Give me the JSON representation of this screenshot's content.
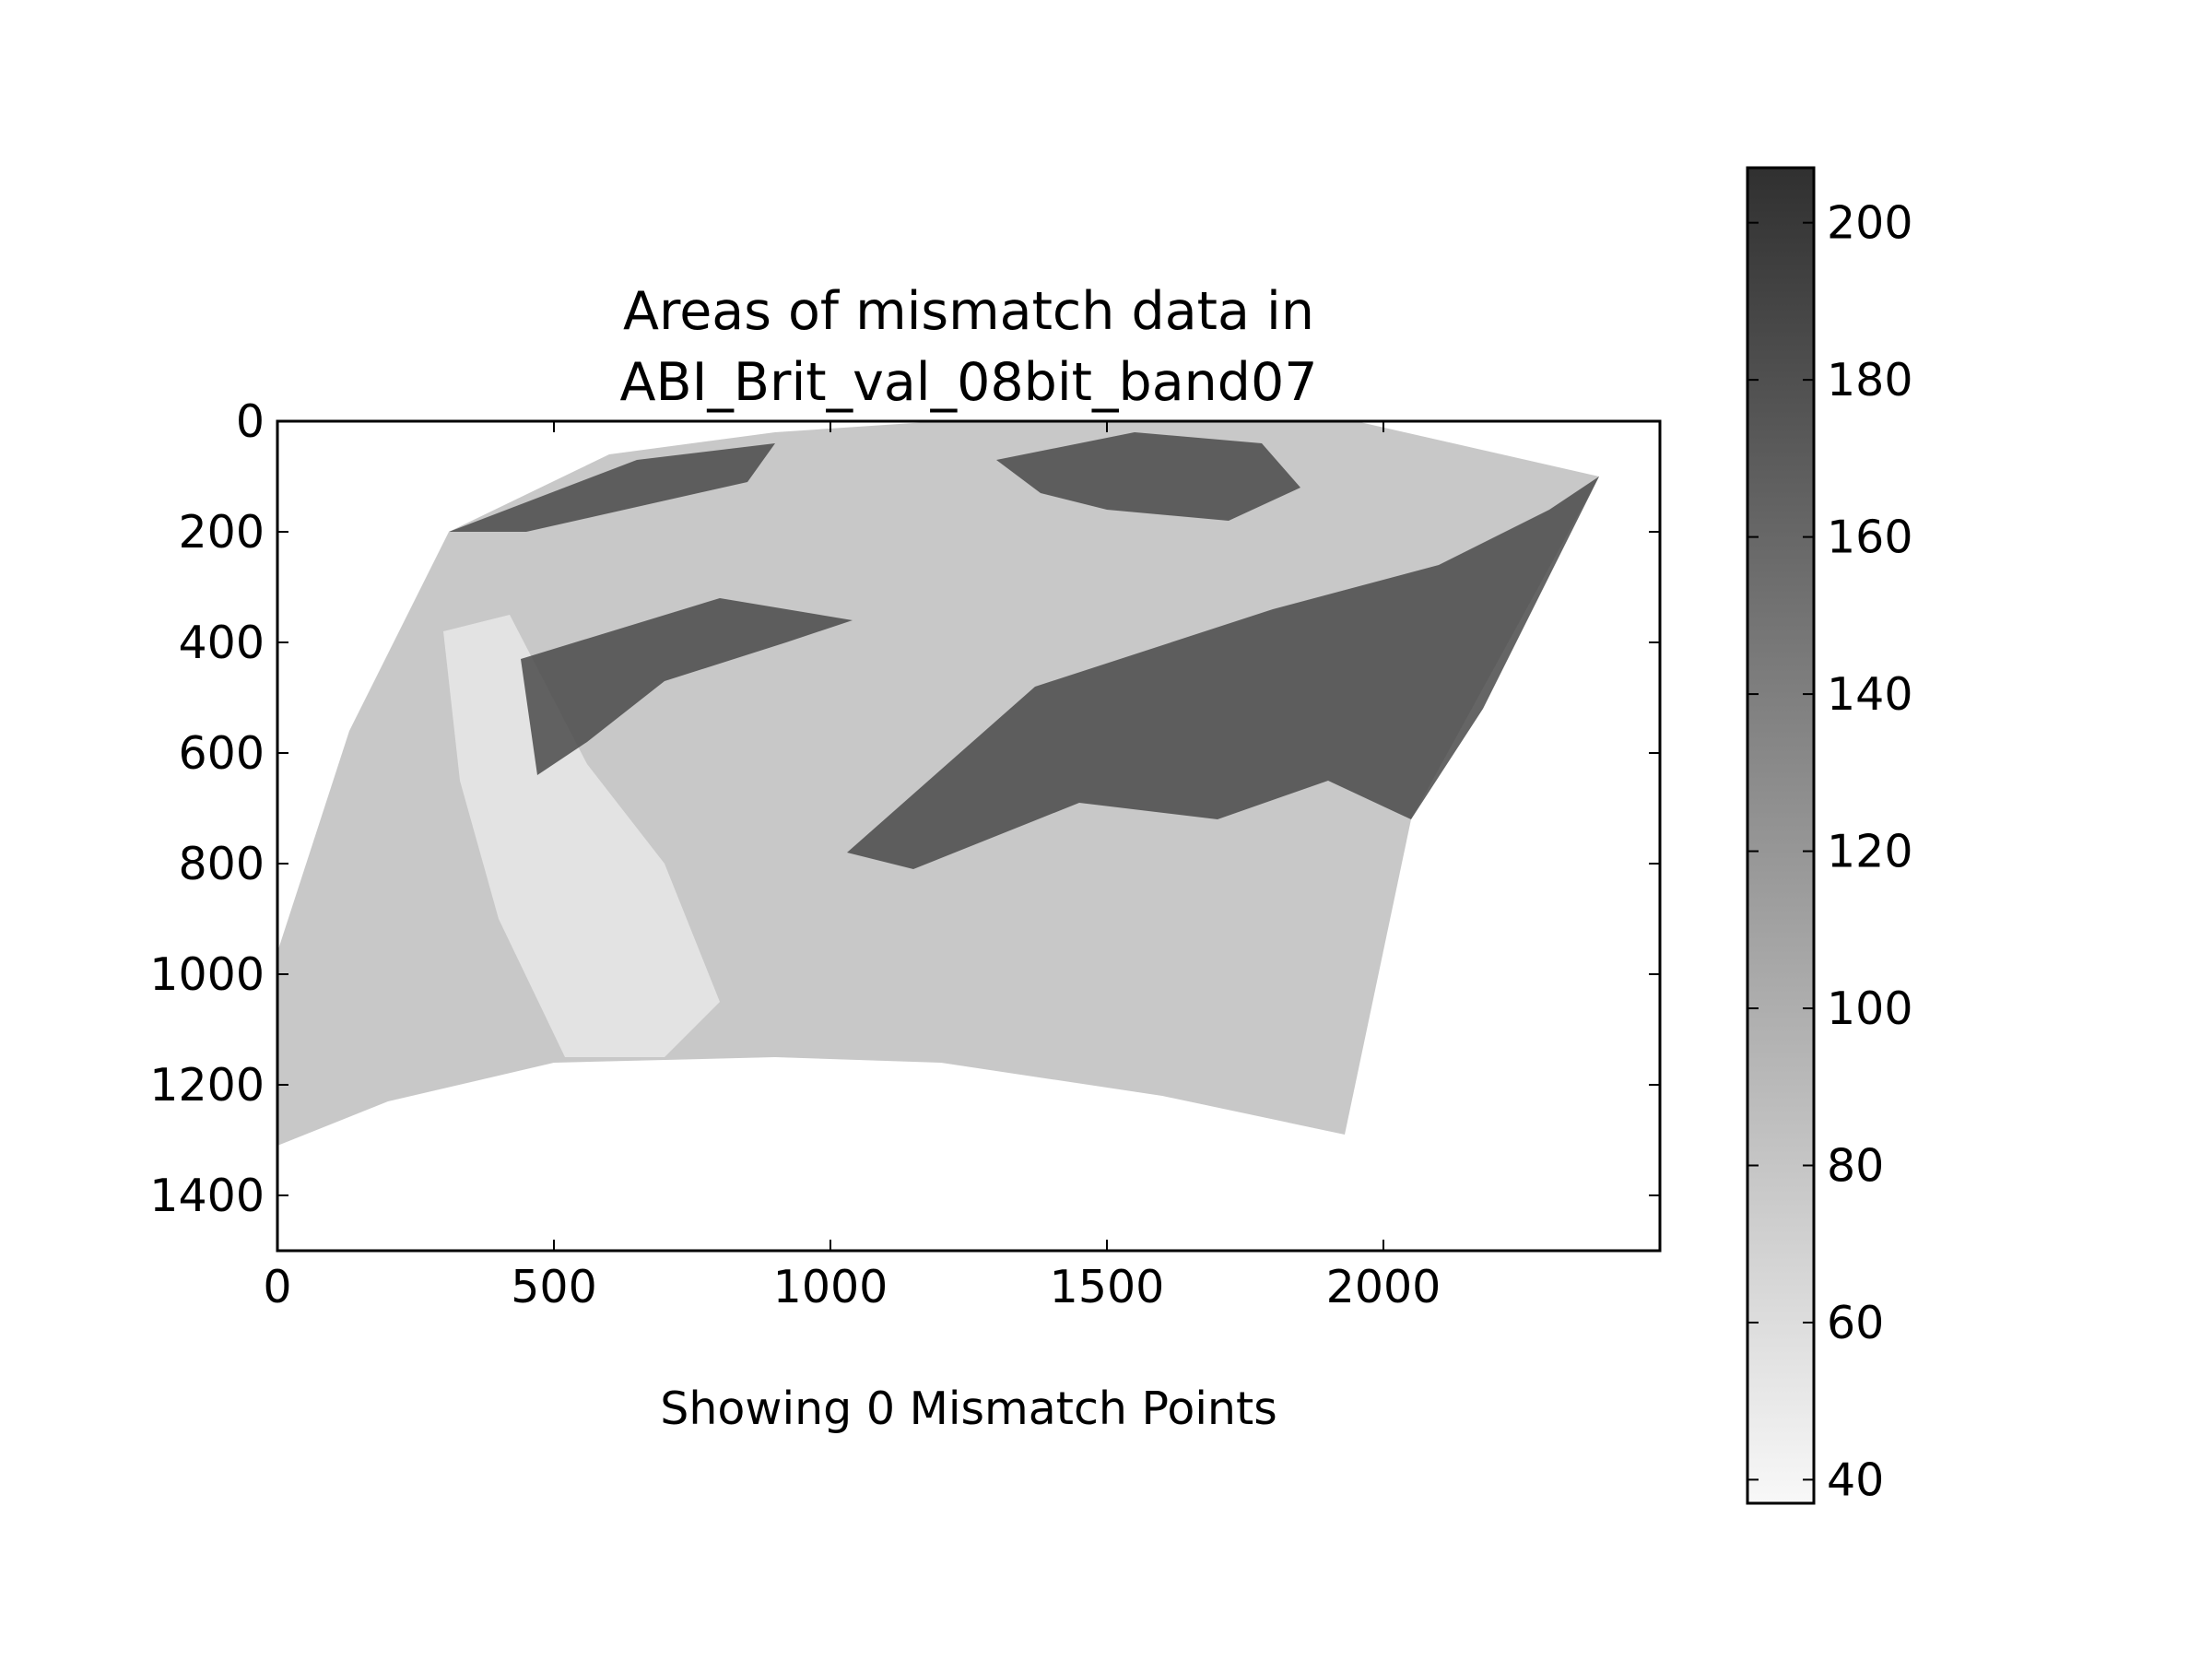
{
  "chart_data": {
    "type": "heatmap",
    "title_lines": [
      "Areas of mismatch data in",
      "ABI_Brit_val_08bit_band07"
    ],
    "xlabel": "Showing 0 Mismatch Points",
    "ylabel": "",
    "xlim": [
      0,
      2500
    ],
    "ylim": [
      1500,
      0
    ],
    "x_ticks": [
      0,
      500,
      1000,
      1500,
      2000
    ],
    "y_ticks": [
      0,
      200,
      400,
      600,
      800,
      1000,
      1200,
      1400
    ],
    "image_extent": {
      "footprint_polygon": [
        [
          0,
          960
        ],
        [
          130,
          560
        ],
        [
          310,
          200
        ],
        [
          600,
          60
        ],
        [
          900,
          20
        ],
        [
          1200,
          0
        ],
        [
          1950,
          0
        ],
        [
          2390,
          100
        ],
        [
          2050,
          720
        ],
        [
          1930,
          1290
        ],
        [
          1600,
          1220
        ],
        [
          1200,
          1160
        ],
        [
          900,
          1150
        ],
        [
          500,
          1160
        ],
        [
          200,
          1230
        ],
        [
          0,
          1310
        ]
      ],
      "dark_regions": [
        [
          [
            310,
            200
          ],
          [
            650,
            70
          ],
          [
            900,
            40
          ],
          [
            850,
            110
          ],
          [
            450,
            200
          ]
        ],
        [
          [
            440,
            430
          ],
          [
            800,
            320
          ],
          [
            1040,
            360
          ],
          [
            920,
            400
          ],
          [
            700,
            470
          ],
          [
            560,
            580
          ],
          [
            470,
            640
          ]
        ],
        [
          [
            1030,
            780
          ],
          [
            1370,
            480
          ],
          [
            1800,
            340
          ],
          [
            2100,
            260
          ],
          [
            2300,
            160
          ],
          [
            2390,
            100
          ],
          [
            2180,
            520
          ],
          [
            2050,
            720
          ],
          [
            1900,
            650
          ],
          [
            1700,
            720
          ],
          [
            1450,
            690
          ],
          [
            1150,
            810
          ]
        ],
        [
          [
            1300,
            70
          ],
          [
            1550,
            20
          ],
          [
            1780,
            40
          ],
          [
            1850,
            120
          ],
          [
            1720,
            180
          ],
          [
            1500,
            160
          ],
          [
            1380,
            130
          ]
        ]
      ],
      "light_regions": [
        [
          [
            300,
            380
          ],
          [
            420,
            350
          ],
          [
            560,
            620
          ],
          [
            700,
            800
          ],
          [
            800,
            1050
          ],
          [
            700,
            1150
          ],
          [
            520,
            1150
          ],
          [
            400,
            900
          ],
          [
            330,
            650
          ]
        ]
      ]
    },
    "colorbar": {
      "colormap": "gray_r",
      "vmin": 37,
      "vmax": 207,
      "ticks": [
        40,
        60,
        80,
        100,
        120,
        140,
        160,
        180,
        200
      ]
    },
    "mismatch_points": []
  }
}
